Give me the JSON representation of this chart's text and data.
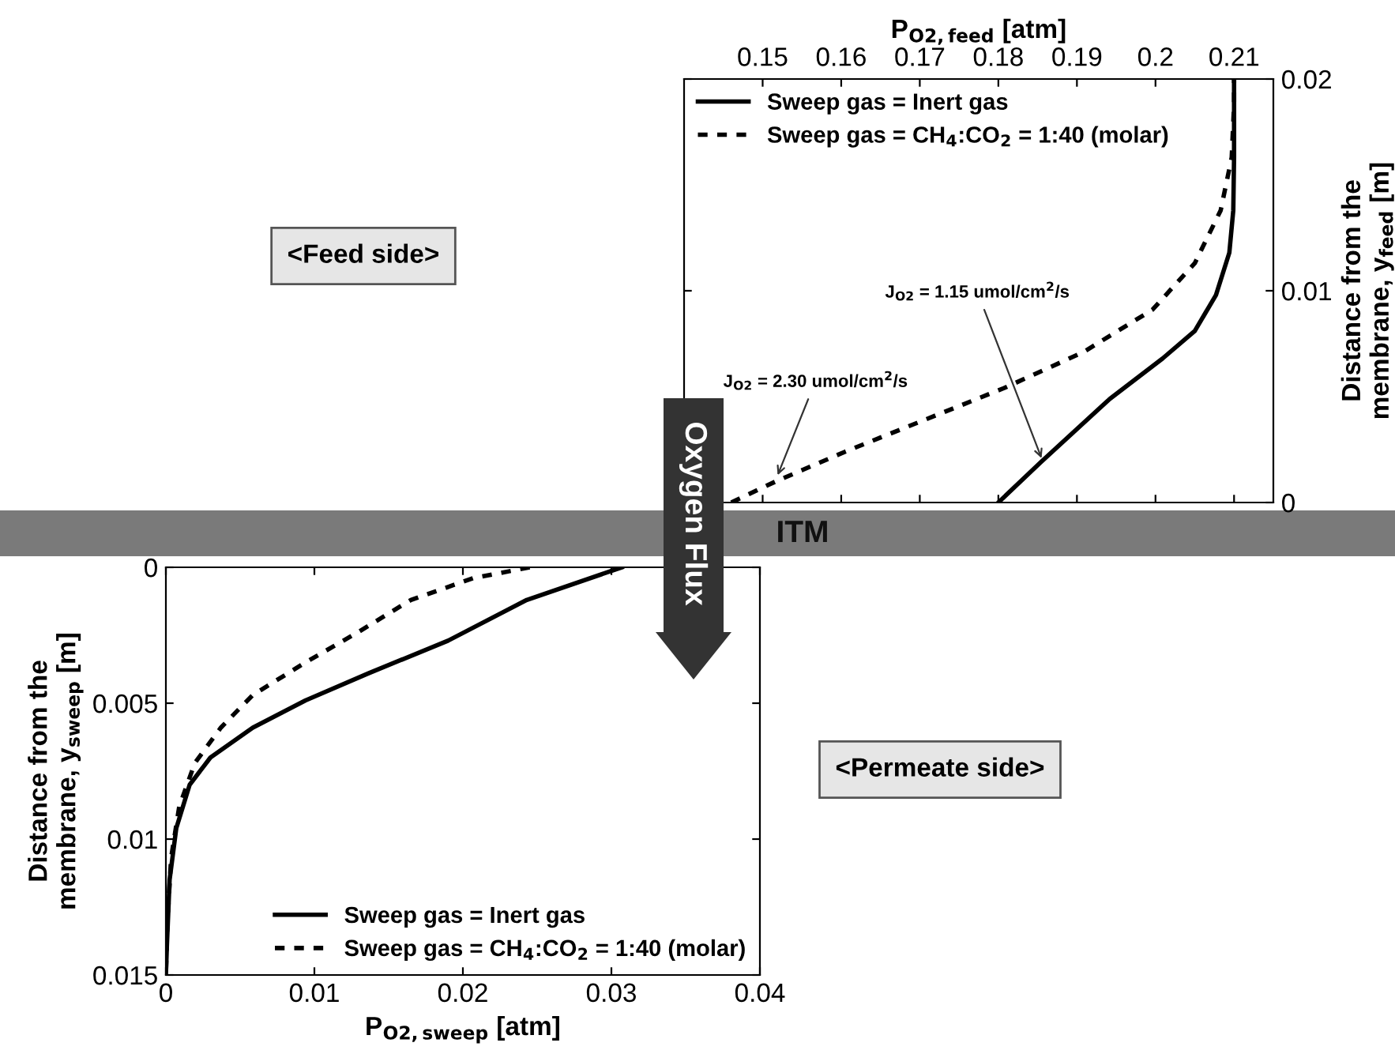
{
  "chart_data": [
    {
      "type": "line",
      "xlabel": "P$_{O2,feed}$ [atm]",
      "ylabel": "Distance from the\nmembrane, y$_{feed}$ [m]",
      "xlim": [
        0.14,
        0.215
      ],
      "ylim": [
        0,
        0.02
      ],
      "xticks": [
        0.15,
        0.16,
        0.17,
        0.18,
        0.19,
        0.2,
        0.21
      ],
      "yticks": [
        0,
        0.01,
        0.02
      ],
      "legend": "top left",
      "series": [
        {
          "name": "Sweep gas = Inert gas",
          "color": "#000000",
          "line_style": "solid",
          "x": [
            0.18,
            0.1854,
            0.1942,
            0.2009,
            0.205,
            0.2077,
            0.2094,
            0.2099,
            0.21,
            0.21
          ],
          "values": [
            0,
            0.0019,
            0.0049,
            0.0068,
            0.0081,
            0.0098,
            0.0118,
            0.0138,
            0.0163,
            0.02
          ]
        },
        {
          "name": "Sweep gas = CH$_{4}$:CO$_{2}$ = 1:40 (molar)",
          "color": "#000000",
          "line_style": "dashed",
          "x": [
            0.146,
            0.1517,
            0.1605,
            0.1706,
            0.1807,
            0.1908,
            0.1996,
            0.205,
            0.2083,
            0.2097,
            0.21,
            0.21
          ],
          "values": [
            0,
            0.001,
            0.0024,
            0.0039,
            0.0054,
            0.0071,
            0.0091,
            0.0113,
            0.0138,
            0.0163,
            0.0188,
            0.02
          ]
        }
      ],
      "annotations": [
        {
          "text": "J$_{O2}$ = 1.15 umol/cm$^{2}$/s",
          "x": 0.1857,
          "y": 0.0019
        },
        {
          "text": "J$_{O2}$ = 2.30 umol/cm$^{2}$/s",
          "x": 0.1517,
          "y": 0.0011
        },
        "<Feed side>",
        "ITM",
        "Oxygen Flux"
      ]
    },
    {
      "type": "line",
      "xlabel": "P$_{O2,sweep}$ [atm]",
      "ylabel": "Distance from the\nmembrane, y$_{sweep}$ [m]",
      "xlim": [
        0,
        0.04
      ],
      "ylim": [
        0.015,
        0
      ],
      "xticks": [
        0,
        0.01,
        0.02,
        0.03,
        0.04
      ],
      "yticks": [
        0,
        0.005,
        0.01,
        0.015
      ],
      "legend": "bottom right",
      "series": [
        {
          "name": "Sweep gas = Inert gas",
          "color": "#000000",
          "line_style": "solid",
          "x": [
            0.0307,
            0.0243,
            0.019,
            0.01365,
            0.0094,
            0.00585,
            0.003,
            0.0016,
            0.0007,
            0.00025,
            7e-05,
            0
          ],
          "values": [
            0,
            0.0012,
            0.0027,
            0.0039,
            0.0049,
            0.0059,
            0.007,
            0.008,
            0.0096,
            0.0115,
            0.0139,
            0.015
          ]
        },
        {
          "name": "Sweep gas = CH$_{4}$:CO$_{2}$ = 1:40 (molar)",
          "color": "#000000",
          "line_style": "dashed",
          "x": [
            0.0245,
            0.0207,
            0.0165,
            0.0129,
            0.0094,
            0.00585,
            0.0037,
            0.00195,
            0.0009,
            0.00035,
            0.0001,
            0
          ],
          "values": [
            0,
            0.0004,
            0.0012,
            0.0024,
            0.0035,
            0.0047,
            0.0059,
            0.0072,
            0.0088,
            0.0107,
            0.0131,
            0.015
          ]
        }
      ],
      "annotations": [
        "<Permeate side>"
      ]
    }
  ]
}
